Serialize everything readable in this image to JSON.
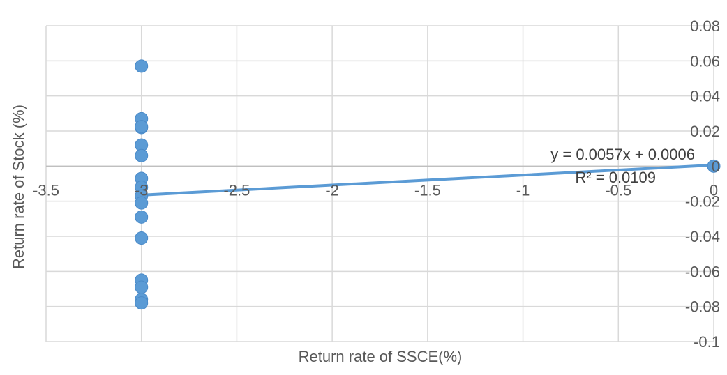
{
  "chart_data": {
    "type": "scatter",
    "title": "",
    "xlabel": "Return rate of SSCE(%)",
    "ylabel": "Return rate of Stock (%)",
    "xlim": [
      -3.5,
      0
    ],
    "ylim": [
      -0.1,
      0.08
    ],
    "x_ticks": [
      -3.5,
      -3,
      -2.5,
      -2,
      -1.5,
      -1,
      -0.5,
      0
    ],
    "y_ticks": [
      0.08,
      0.06,
      0.04,
      0.02,
      0,
      -0.02,
      -0.04,
      -0.06,
      -0.08,
      -0.1
    ],
    "x_tick_labels": [
      "-3.5",
      "-3",
      "-2.5",
      "-2",
      "-1.5",
      "-1",
      "-0.5",
      "0"
    ],
    "y_tick_labels": [
      "0.08",
      "0.06",
      "0.04",
      "0.02",
      "0",
      "-0.02",
      "-0.04",
      "-0.06",
      "-0.08",
      "-0.1"
    ],
    "grid": true,
    "y_axis_side": "right",
    "x_axis_crosses_at_y": 0,
    "series": [
      {
        "color": "#5B9BD5",
        "points": [
          {
            "x": -3.0,
            "y": 0.057
          },
          {
            "x": -3.0,
            "y": 0.027
          },
          {
            "x": -3.0,
            "y": 0.022
          },
          {
            "x": -3.0,
            "y": 0.0225
          },
          {
            "x": -3.0,
            "y": 0.012
          },
          {
            "x": -3.0,
            "y": 0.006
          },
          {
            "x": -3.0,
            "y": -0.007
          },
          {
            "x": -3.0,
            "y": -0.012
          },
          {
            "x": -3.0,
            "y": -0.017
          },
          {
            "x": -3.0,
            "y": -0.021
          },
          {
            "x": -3.0,
            "y": -0.029
          },
          {
            "x": -3.0,
            "y": -0.041
          },
          {
            "x": -3.0,
            "y": -0.065
          },
          {
            "x": -3.0,
            "y": -0.069
          },
          {
            "x": -3.0,
            "y": -0.076
          },
          {
            "x": -3.0,
            "y": -0.078
          },
          {
            "x": 0.0,
            "y": 0.0
          }
        ]
      }
    ],
    "trendline": {
      "slope": 0.0057,
      "intercept": 0.0006,
      "x_range": [
        -3.0,
        0
      ],
      "color": "#5B9BD5",
      "equation": "y = 0.0057x + 0.0006",
      "r_squared": "R² = 0.0109"
    }
  }
}
